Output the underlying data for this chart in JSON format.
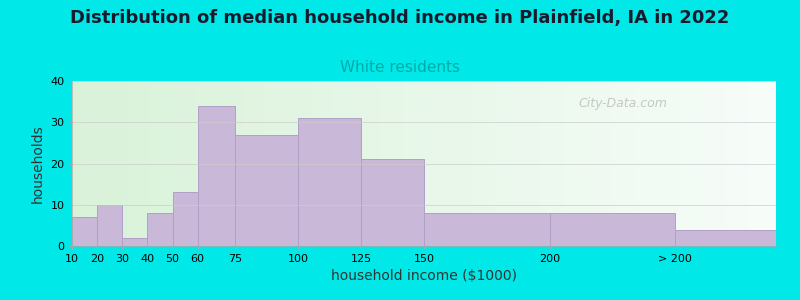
{
  "title": "Distribution of median household income in Plainfield, IA in 2022",
  "subtitle": "White residents",
  "xlabel": "household income ($1000)",
  "ylabel": "households",
  "bar_labels": [
    "10",
    "20",
    "30",
    "40",
    "50",
    "60",
    "75",
    "100",
    "125",
    "150",
    "200",
    "> 200"
  ],
  "bar_values": [
    7,
    10,
    2,
    8,
    13,
    34,
    27,
    31,
    21,
    8,
    8,
    4
  ],
  "bar_positions": [
    10,
    20,
    30,
    40,
    50,
    60,
    75,
    100,
    125,
    150,
    200,
    250
  ],
  "bar_widths": [
    10,
    10,
    10,
    10,
    10,
    15,
    25,
    25,
    25,
    50,
    50,
    40
  ],
  "tick_positions": [
    10,
    20,
    30,
    40,
    50,
    60,
    75,
    100,
    125,
    150,
    200,
    250
  ],
  "bar_color": "#c9b8d8",
  "bar_edge_color": "#b0a0c8",
  "background_outer": "#00e8e8",
  "title_fontsize": 13,
  "subtitle_fontsize": 11,
  "subtitle_color": "#00aaaa",
  "axis_label_fontsize": 10,
  "tick_fontsize": 8,
  "ylim": [
    0,
    40
  ],
  "yticks": [
    0,
    10,
    20,
    30,
    40
  ],
  "xlim": [
    10,
    290
  ],
  "watermark": "City-Data.com"
}
